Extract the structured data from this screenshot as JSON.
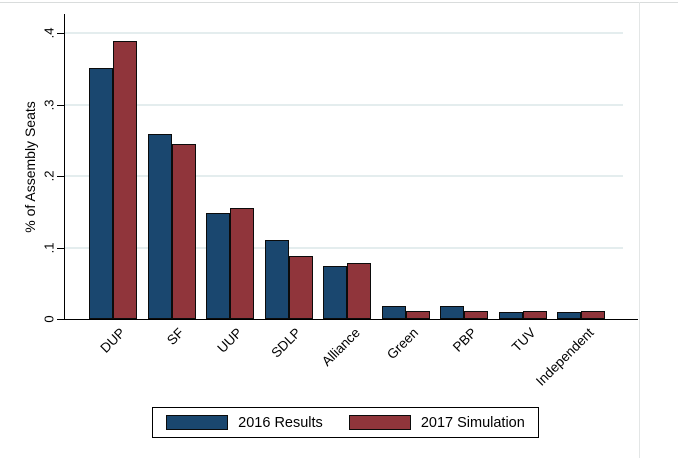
{
  "chart_data": {
    "type": "bar",
    "title": "",
    "xlabel": "",
    "ylabel": "% of Assembly Seats",
    "categories": [
      "DUP",
      "SF",
      "UUP",
      "SDLP",
      "Alliance",
      "Green",
      "PBP",
      "TUV",
      "Independent"
    ],
    "series": [
      {
        "name": "2016 Results",
        "color": "#1a476f",
        "values": [
          0.3519,
          0.2593,
          0.1481,
          0.1111,
          0.0741,
          0.0185,
          0.0185,
          0.0093,
          0.0093
        ]
      },
      {
        "name": "2017 Simulation",
        "color": "#90353b",
        "values": [
          0.3889,
          0.2444,
          0.1556,
          0.0889,
          0.0778,
          0.0111,
          0.0111,
          0.0111,
          0.0111
        ]
      }
    ],
    "ylim": [
      0,
      0.427
    ],
    "yticks": [
      0,
      0.1,
      0.2,
      0.3,
      0.4
    ],
    "ytick_labels": [
      "0",
      ".1",
      ".2",
      ".3",
      ".4"
    ],
    "xtick_label_angle_deg": 45,
    "ytick_label_angle_deg": 90,
    "grid": "horizontal",
    "gridline_color": "#e4edee",
    "bar_outline_color": "#0b0b0b",
    "legend_position": "bottom-center",
    "legend_items": [
      "2016 Results",
      "2017 Simulation"
    ]
  }
}
